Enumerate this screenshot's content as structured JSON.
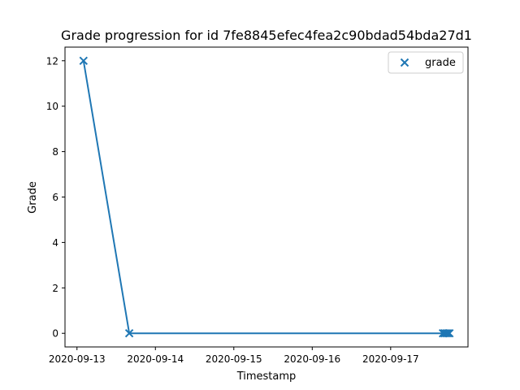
{
  "chart_data": {
    "type": "scatter",
    "title": "Grade progression for id 7fe8845efec4fea2c90bdad54bda27d1",
    "xlabel": "Timestamp",
    "ylabel": "Grade",
    "x_ticks": [
      "2020-09-13",
      "2020-09-14",
      "2020-09-15",
      "2020-09-16",
      "2020-09-17"
    ],
    "y_ticks": [
      0,
      2,
      4,
      6,
      8,
      10,
      12
    ],
    "xlim": [
      "2020-09-12T20:20",
      "2020-09-17T23:40"
    ],
    "ylim": [
      -0.6,
      12.6
    ],
    "grid": false,
    "legend": {
      "position": "top-right",
      "entries": [
        "grade"
      ]
    },
    "series": [
      {
        "name": "grade",
        "color": "#1f77b4",
        "marker": "x",
        "connected": true,
        "points": [
          {
            "x": "2020-09-13T02:00",
            "y": 12
          },
          {
            "x": "2020-09-13T16:00",
            "y": 0
          },
          {
            "x": "2020-09-17T16:00",
            "y": 0
          },
          {
            "x": "2020-09-17T16:30",
            "y": 0
          },
          {
            "x": "2020-09-17T17:00",
            "y": 0
          },
          {
            "x": "2020-09-17T17:30",
            "y": 0
          },
          {
            "x": "2020-09-17T18:00",
            "y": 0
          }
        ]
      }
    ]
  }
}
